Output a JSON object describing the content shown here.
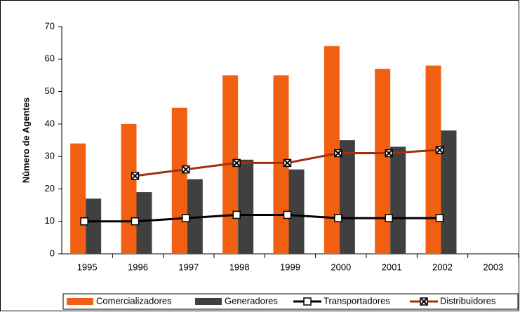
{
  "chart_data": {
    "type": "bar",
    "y_label": "Número de Agentes",
    "categories": [
      "1995",
      "1996",
      "1997",
      "1998",
      "1999",
      "2000",
      "2001",
      "2002",
      "2003"
    ],
    "series": [
      {
        "name": "Comercializadores",
        "type": "bar",
        "color": "#f06010",
        "values": [
          34,
          40,
          45,
          55,
          55,
          64,
          57,
          58,
          null
        ]
      },
      {
        "name": "Generadores",
        "type": "bar",
        "color": "#404040",
        "values": [
          17,
          19,
          23,
          29,
          26,
          35,
          33,
          38,
          null
        ]
      },
      {
        "name": "Transportadores",
        "type": "line",
        "marker": "square",
        "color": "#000000",
        "values": [
          10,
          10,
          11,
          12,
          12,
          11,
          11,
          11,
          null
        ]
      },
      {
        "name": "Distribuidores",
        "type": "line",
        "marker": "x",
        "color": "#a03010",
        "values": [
          null,
          24,
          26,
          28,
          28,
          31,
          31,
          32,
          null
        ]
      }
    ],
    "ylim": [
      0,
      70
    ],
    "yticks": [
      0,
      10,
      20,
      30,
      40,
      50,
      60,
      70
    ],
    "grid": false,
    "legend": "bottom"
  }
}
